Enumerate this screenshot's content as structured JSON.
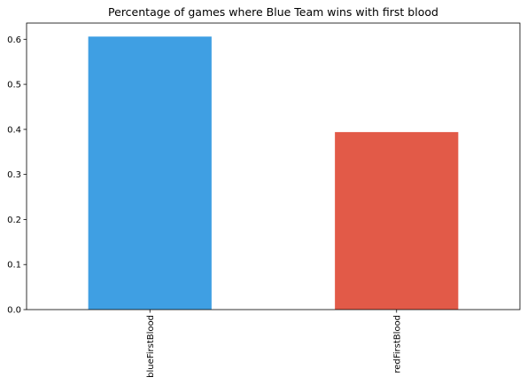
{
  "chart_data": {
    "type": "bar",
    "title": "Percentage of games where Blue Team wins with first blood",
    "categories": [
      "blueFirstBlood",
      "redFirstBlood"
    ],
    "values": [
      0.606,
      0.394
    ],
    "colors": [
      "#3f9fe3",
      "#e25a48"
    ],
    "xlabel": "",
    "ylabel": "",
    "ylim": [
      0,
      0.636
    ],
    "yticks": [
      0.0,
      0.1,
      0.2,
      0.3,
      0.4,
      0.5,
      0.6
    ],
    "ytick_labels": [
      "0.0",
      "0.1",
      "0.2",
      "0.3",
      "0.4",
      "0.5",
      "0.6"
    ],
    "xtick_rotation": 90,
    "grid": false,
    "legend": "none"
  }
}
